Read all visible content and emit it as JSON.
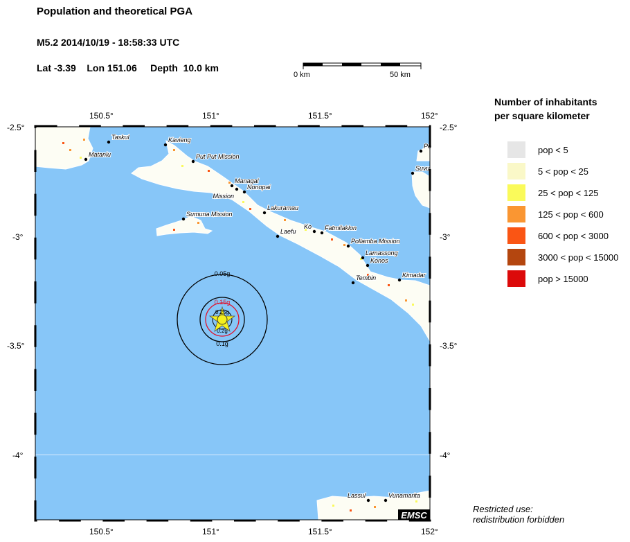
{
  "header": {
    "title": "Population and theoretical PGA",
    "event": "M5.2  2014/10/19 - 18:58:33 UTC",
    "location": "Lat -3.39    Lon 151.06     Depth  10.0 km"
  },
  "scale_bar": {
    "start_label": "0 km",
    "end_label": "50 km"
  },
  "map": {
    "lon_ticks": [
      "150.5°",
      "151°",
      "151.5°",
      "152°"
    ],
    "lat_ticks": [
      "-2.5°",
      "-3°",
      "-3.5°",
      "-4°"
    ],
    "lon_range": [
      150.2,
      152.0
    ],
    "lat_range": [
      -4.3,
      -2.5
    ],
    "colors": {
      "sea": "#87c6f8",
      "land": "#ffffff"
    },
    "epicenter": {
      "lat": -3.39,
      "lon": 151.06
    },
    "pga_contours": [
      {
        "label": "0.05g",
        "color": "#000000"
      },
      {
        "label": "0.1g",
        "color": "#000000"
      },
      {
        "label": "0.15g",
        "color": "#e0102a"
      },
      {
        "label": "0.2g",
        "color": "#000000"
      },
      {
        "label": "0.25g",
        "color": "#000000"
      }
    ],
    "places": [
      "Taskul",
      "Matanlu",
      "Kavieng",
      "Put Put Mission",
      "Managal",
      "Mission",
      "Nonopai",
      "Lakuramau",
      "Sumuna Mission",
      "Laefu",
      "Ko",
      "Fatmilaklon",
      "Pollamba Mission",
      "Lamassong",
      "Konos",
      "Tembin",
      "Kimadar",
      "Po",
      "Suvu",
      "Lassul",
      "Vunamarita"
    ],
    "logo": "EMSC"
  },
  "legend": {
    "title_line1": "Number of inhabitants",
    "title_line2": "per square kilometer",
    "items": [
      {
        "label": "pop < 5",
        "color": "#e6e6e6"
      },
      {
        "label": "5 < pop < 25",
        "color": "#faf8c8"
      },
      {
        "label": "25 < pop < 125",
        "color": "#fafa5a"
      },
      {
        "label": "125 < pop < 600",
        "color": "#fa9632"
      },
      {
        "label": "600 < pop < 3000",
        "color": "#fa5514"
      },
      {
        "label": "3000 < pop < 15000",
        "color": "#b4460f"
      },
      {
        "label": "pop > 15000",
        "color": "#dc0a0a"
      }
    ]
  },
  "notice": {
    "line1": "Restricted use:",
    "line2": "redistribution forbidden"
  }
}
